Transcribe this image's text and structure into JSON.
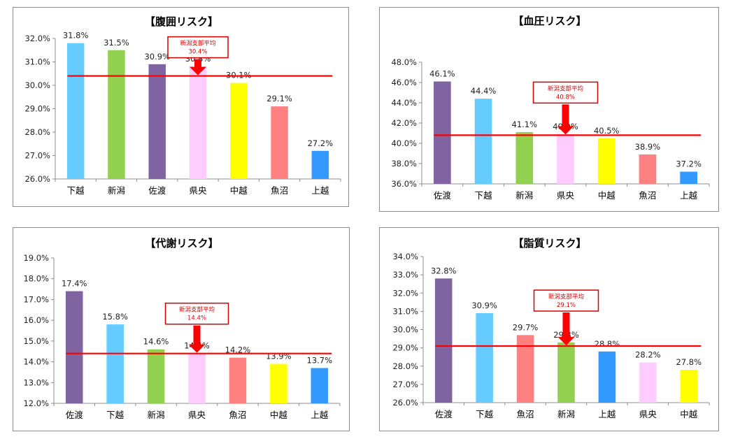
{
  "colors": {
    "purple": "#8064a2",
    "lightblue": "#66ccff",
    "green": "#92d050",
    "pink": "#ffccff",
    "yellow": "#ffff00",
    "salmon": "#ff8080",
    "blue": "#3399ff",
    "avg_line": "#ff0000",
    "callout_border": "#d40000"
  },
  "chart_data": [
    {
      "type": "bar",
      "title": "【腹囲リスク】",
      "categories": [
        "下越",
        "新潟",
        "佐渡",
        "県央",
        "中越",
        "魚沼",
        "上越"
      ],
      "values": [
        31.8,
        31.5,
        30.9,
        30.8,
        30.1,
        29.1,
        27.2
      ],
      "value_labels": [
        "31.8%",
        "31.5%",
        "30.9%",
        "30.8%",
        "30.1%",
        "29.1%",
        "27.2%"
      ],
      "bar_colors": [
        "lightblue",
        "green",
        "purple",
        "pink",
        "yellow",
        "salmon",
        "blue"
      ],
      "ylim": [
        26,
        32
      ],
      "yticks": [
        26,
        27,
        28,
        29,
        30,
        31,
        32
      ],
      "ytick_labels": [
        "26.0%",
        "27.0%",
        "28.0%",
        "29.0%",
        "30.0%",
        "31.0%",
        "32.0%"
      ],
      "grid": false,
      "average": {
        "value": 30.4,
        "label": "新潟支部平均",
        "value_label": "30.4%"
      }
    },
    {
      "type": "bar",
      "title": "【血圧リスク】",
      "categories": [
        "佐渡",
        "下越",
        "新潟",
        "県央",
        "中越",
        "魚沼",
        "上越"
      ],
      "values": [
        46.1,
        44.4,
        41.1,
        40.9,
        40.5,
        38.9,
        37.2
      ],
      "value_labels": [
        "46.1%",
        "44.4%",
        "41.1%",
        "40.9%",
        "40.5%",
        "38.9%",
        "37.2%"
      ],
      "bar_colors": [
        "purple",
        "lightblue",
        "green",
        "pink",
        "yellow",
        "salmon",
        "blue"
      ],
      "ylim": [
        36,
        48
      ],
      "yticks": [
        36,
        38,
        40,
        42,
        44,
        46,
        48
      ],
      "ytick_labels": [
        "36.0%",
        "38.0%",
        "40.0%",
        "42.0%",
        "44.0%",
        "46.0%",
        "48.0%"
      ],
      "grid": false,
      "average": {
        "value": 40.8,
        "label": "新潟支部平均",
        "value_label": "40.8%"
      }
    },
    {
      "type": "bar",
      "title": "【代謝リスク】",
      "categories": [
        "佐渡",
        "下越",
        "新潟",
        "県央",
        "魚沼",
        "中越",
        "上越"
      ],
      "values": [
        17.4,
        15.8,
        14.6,
        14.4,
        14.2,
        13.9,
        13.7
      ],
      "value_labels": [
        "17.4%",
        "15.8%",
        "14.6%",
        "14.4%",
        "14.2%",
        "13.9%",
        "13.7%"
      ],
      "bar_colors": [
        "purple",
        "lightblue",
        "green",
        "pink",
        "salmon",
        "yellow",
        "blue"
      ],
      "ylim": [
        12,
        19
      ],
      "yticks": [
        12,
        13,
        14,
        15,
        16,
        17,
        18,
        19
      ],
      "ytick_labels": [
        "12.0%",
        "13.0%",
        "14.0%",
        "15.0%",
        "16.0%",
        "17.0%",
        "18.0%",
        "19.0%"
      ],
      "grid": false,
      "average": {
        "value": 14.4,
        "label": "新潟支部平均",
        "value_label": "14.4%"
      }
    },
    {
      "type": "bar",
      "title": "【脂質リスク】",
      "categories": [
        "佐渡",
        "下越",
        "魚沼",
        "新潟",
        "上越",
        "県央",
        "中越"
      ],
      "values": [
        32.8,
        30.9,
        29.7,
        29.3,
        28.8,
        28.2,
        27.8
      ],
      "value_labels": [
        "32.8%",
        "30.9%",
        "29.7%",
        "29.3%",
        "28.8%",
        "28.2%",
        "27.8%"
      ],
      "bar_colors": [
        "purple",
        "lightblue",
        "salmon",
        "green",
        "blue",
        "pink",
        "yellow"
      ],
      "ylim": [
        26,
        34
      ],
      "yticks": [
        26,
        27,
        28,
        29,
        30,
        31,
        32,
        33,
        34
      ],
      "ytick_labels": [
        "26.0%",
        "27.0%",
        "28.0%",
        "29.0%",
        "30.0%",
        "31.0%",
        "32.0%",
        "33.0%",
        "34.0%"
      ],
      "grid": false,
      "average": {
        "value": 29.1,
        "label": "新潟支部平均",
        "value_label": "29.1%"
      }
    }
  ]
}
